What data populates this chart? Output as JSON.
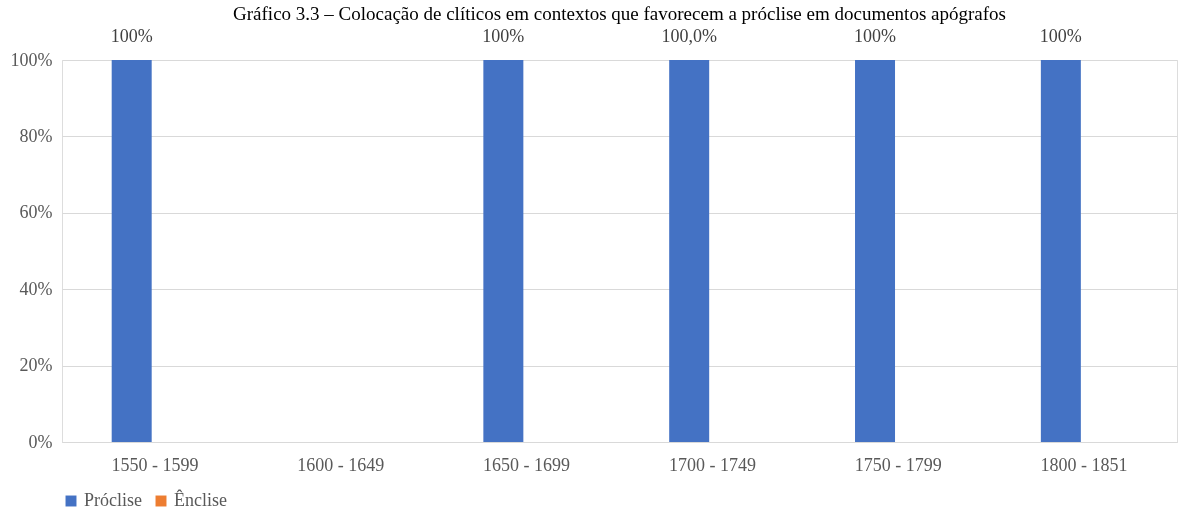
{
  "chart_data": {
    "type": "bar",
    "title": "Gráfico 3.3 – Colocação de clíticos em contextos que favorecem a próclise em documentos apógrafos",
    "categories": [
      "1550 - 1599",
      "1600 - 1649",
      "1650  - 1699",
      "1700 - 1749",
      "1750 - 1799",
      "1800 - 1851"
    ],
    "series": [
      {
        "name": "Próclise",
        "color": "#4472c4",
        "values": [
          100,
          null,
          100,
          100,
          100,
          100
        ],
        "value_labels": [
          "100%",
          null,
          "100%",
          "100,0%",
          "100%",
          "100%"
        ]
      },
      {
        "name": "Ênclise",
        "color": "#ed7d31",
        "values": [
          0,
          null,
          0,
          0,
          0,
          0
        ]
      }
    ],
    "ylim": [
      0,
      100
    ],
    "yticks": [
      {
        "value": 0,
        "label": "0%"
      },
      {
        "value": 20,
        "label": "20%"
      },
      {
        "value": 40,
        "label": "40%"
      },
      {
        "value": 60,
        "label": "60%"
      },
      {
        "value": 80,
        "label": "80%"
      },
      {
        "value": 100,
        "label": "100%"
      }
    ],
    "grid": "y",
    "legend": "bottom"
  }
}
